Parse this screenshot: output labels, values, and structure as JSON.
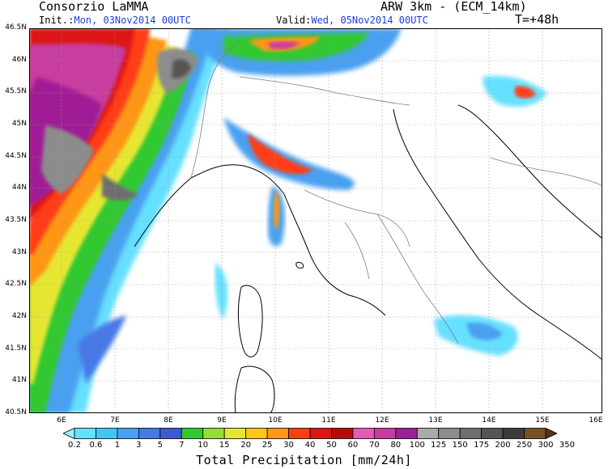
{
  "header": {
    "org": "Consorzio LaMMA",
    "model": "ARW 3km - (ECM_14km)",
    "init_label": "Init.:",
    "init_value": "Mon, 03Nov2014 00UTC",
    "valid_label": "Valid:",
    "valid_value": "Wed, 05Nov2014 00UTC",
    "lead": "T=+48h"
  },
  "axes": {
    "lat_labels": [
      "46.5N",
      "46N",
      "45.5N",
      "45N",
      "44.5N",
      "44N",
      "43.5N",
      "43N",
      "42.5N",
      "42N",
      "41.5N",
      "41N",
      "40.5N"
    ],
    "lon_labels": [
      "6E",
      "7E",
      "8E",
      "9E",
      "10E",
      "11E",
      "12E",
      "13E",
      "14E",
      "15E",
      "16E"
    ]
  },
  "colorbar": {
    "title": "Total Precipitation [mm/24h]",
    "levels": [
      "0.2",
      "0.6",
      "1",
      "3",
      "5",
      "7",
      "10",
      "15",
      "20",
      "25",
      "30",
      "40",
      "50",
      "60",
      "70",
      "80",
      "100",
      "125",
      "150",
      "175",
      "200",
      "250",
      "300",
      "350"
    ],
    "colors": [
      "#a0f0ff",
      "#66e0ff",
      "#3cc8f0",
      "#4aa0f0",
      "#4678e6",
      "#3c5ad2",
      "#32c832",
      "#96dc32",
      "#e6e632",
      "#ffc814",
      "#ff9614",
      "#ff3c14",
      "#dc1414",
      "#b40a0a",
      "#e65ab4",
      "#c83ca0",
      "#a01e96",
      "#aaaaaa",
      "#8c8c8c",
      "#6e6e6e",
      "#555555",
      "#3c3c3c",
      "#785028",
      "#5a3214"
    ]
  }
}
